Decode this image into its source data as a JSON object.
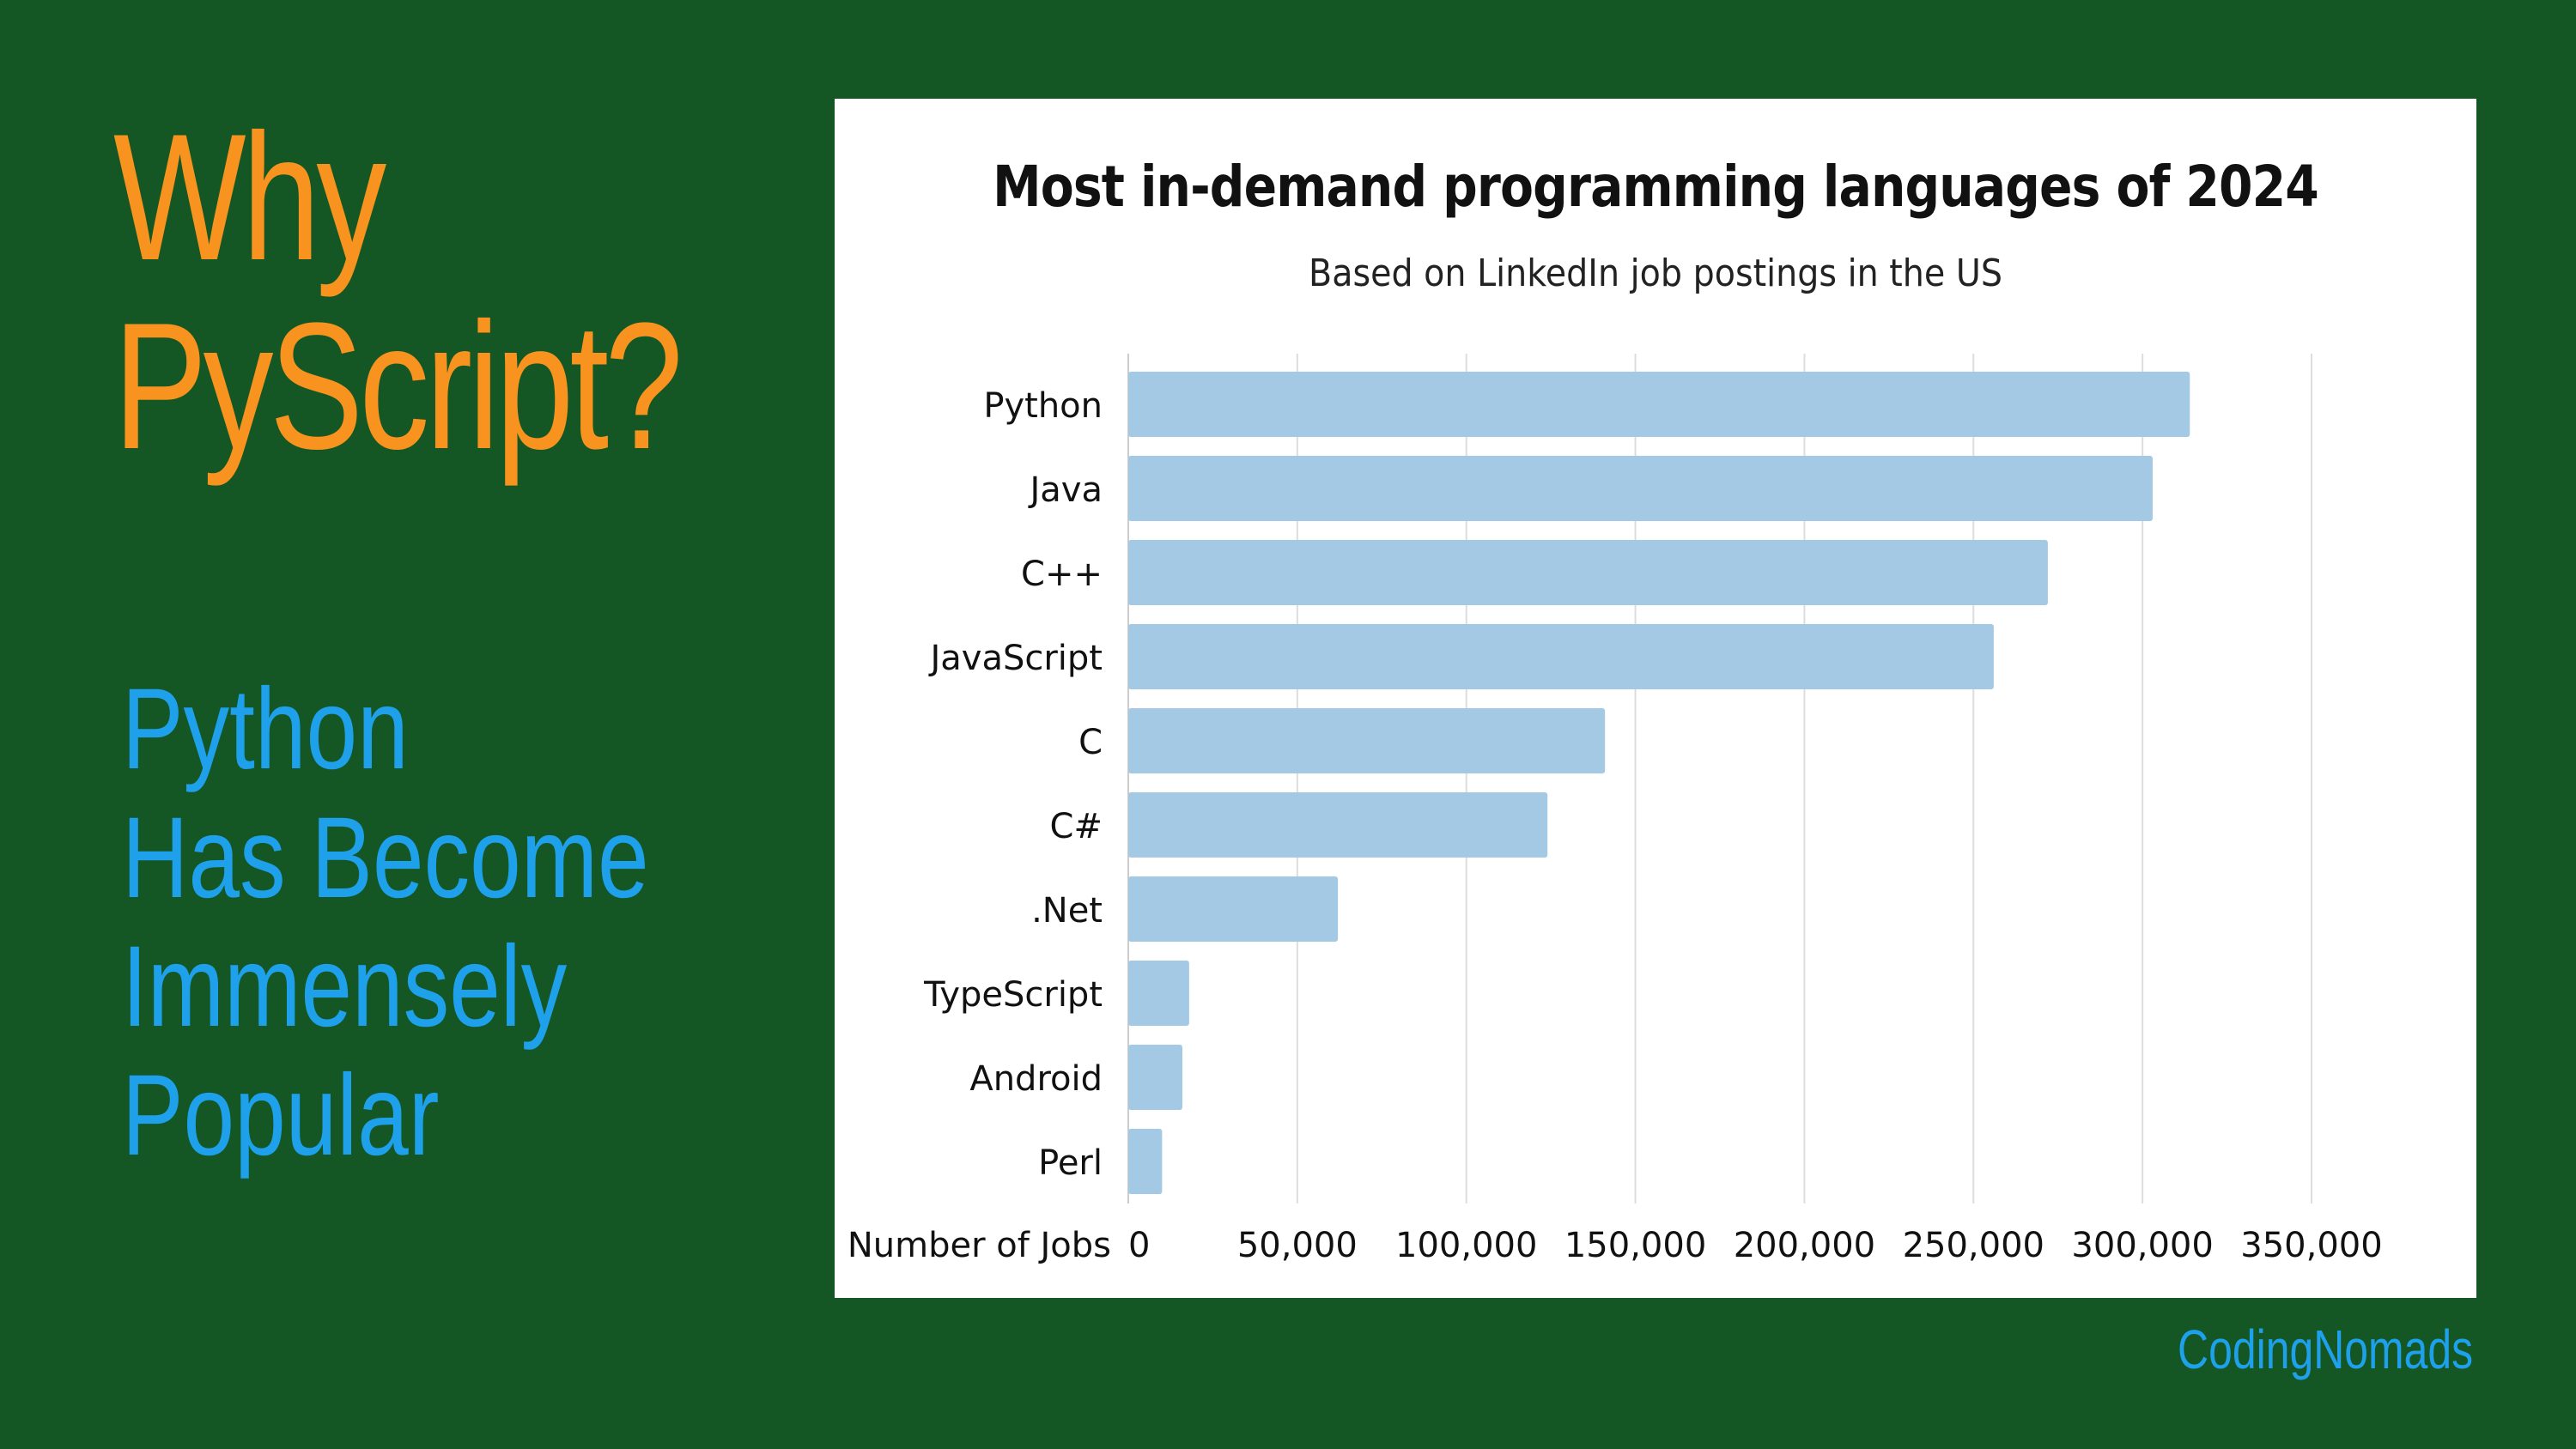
{
  "slide": {
    "heading": [
      "Why",
      "PyScript?"
    ],
    "subheading": [
      "Python",
      "Has Become",
      "Immensely",
      "Popular"
    ],
    "brand": "CodingNomads"
  },
  "colors": {
    "background": "#145624",
    "heading": "#f7931e",
    "subheading": "#1ea0ea",
    "bar": "#a3c9e4",
    "grid": "#dddddd"
  },
  "chart_data": {
    "type": "bar",
    "orientation": "horizontal",
    "title": "Most in-demand programming languages of 2024",
    "subtitle": "Based on LinkedIn job postings in the US",
    "xlabel": "Number of Jobs",
    "categories": [
      "Python",
      "Java",
      "C++",
      "JavaScript",
      "C",
      "C#",
      ".Net",
      "TypeScript",
      "Android",
      "Perl"
    ],
    "values": [
      314000,
      303000,
      272000,
      256000,
      141000,
      124000,
      62000,
      18000,
      16000,
      10000
    ],
    "xlim": [
      0,
      350000
    ],
    "xticks": [
      0,
      50000,
      100000,
      150000,
      200000,
      250000,
      300000,
      350000
    ],
    "xtick_labels": [
      "0",
      "50,000",
      "100,000",
      "150,000",
      "200,000",
      "250,000",
      "300,000",
      "350,000"
    ],
    "grid": "vertical"
  }
}
